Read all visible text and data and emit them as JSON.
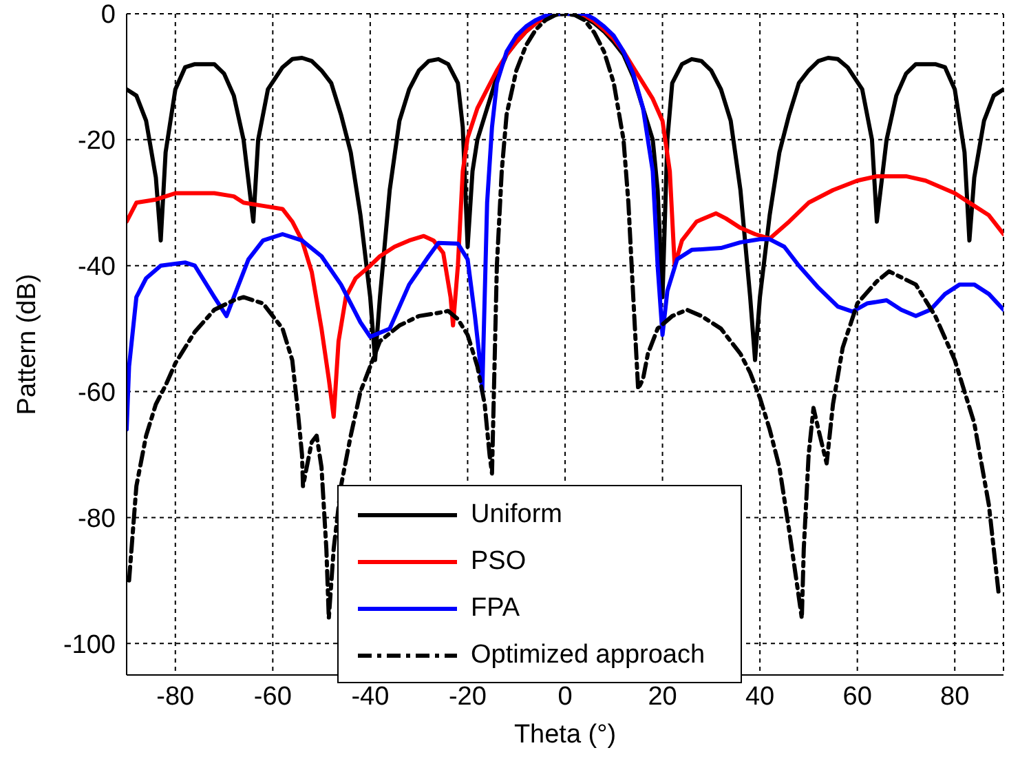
{
  "chart_data": {
    "type": "line",
    "xlabel": "Theta (°)",
    "ylabel": "Pattern (dB)",
    "xlim": [
      -90,
      90
    ],
    "xticks": [
      -80,
      -60,
      -40,
      -20,
      0,
      20,
      40,
      60,
      80
    ],
    "ylim": [
      -105,
      0
    ],
    "yticks": [
      -100,
      -80,
      -60,
      -40,
      -20,
      0
    ],
    "grid": true,
    "legend": "bottom",
    "marker": "none",
    "series": [
      {
        "name": "Uniform",
        "color": "#000000",
        "line_style": "solid",
        "x": [
          -90,
          -88,
          -86,
          -84,
          -83,
          -82,
          -80,
          -78,
          -76,
          -74,
          -72,
          -70,
          -68,
          -66,
          -64,
          -63,
          -61,
          -58,
          -56,
          -54,
          -52,
          -50,
          -48,
          -46,
          -44,
          -42,
          -40,
          -39,
          -38,
          -36,
          -34,
          -32,
          -30,
          -28,
          -26,
          -24,
          -22,
          -21,
          -20,
          -19,
          -18,
          -16,
          -14,
          -12,
          -10,
          -8,
          -6,
          -4,
          -2,
          0,
          2,
          4,
          6,
          8,
          10,
          12,
          14,
          16,
          18,
          19,
          20,
          21,
          22,
          24,
          26,
          28,
          30,
          32,
          34,
          36,
          38,
          39,
          40,
          42,
          44,
          46,
          48,
          50,
          52,
          54,
          56,
          58,
          61,
          63,
          64,
          66,
          68,
          70,
          72,
          74,
          76,
          78,
          80,
          82,
          83,
          84,
          86,
          88,
          90
        ],
        "values": [
          -12,
          -13,
          -17,
          -26,
          -36,
          -22,
          -12,
          -8.5,
          -8,
          -8,
          -8,
          -9.5,
          -13,
          -20,
          -33,
          -20,
          -12,
          -8.5,
          -7.2,
          -7,
          -7.5,
          -9,
          -11,
          -16,
          -22,
          -32,
          -45,
          -55,
          -45,
          -28,
          -17,
          -12,
          -9,
          -7.5,
          -7.2,
          -8,
          -11,
          -18,
          -37,
          -25,
          -20,
          -15,
          -10,
          -6.5,
          -4.5,
          -2.8,
          -1.5,
          -0.6,
          -0.1,
          0,
          -0.1,
          -0.6,
          -1.5,
          -2.8,
          -4.5,
          -6.5,
          -10,
          -15,
          -20,
          -28,
          -45,
          -20,
          -11,
          -8,
          -7.2,
          -7.5,
          -9,
          -12,
          -17,
          -28,
          -45,
          -55,
          -45,
          -32,
          -22,
          -16,
          -11,
          -9,
          -7.5,
          -7,
          -7.2,
          -8.5,
          -12,
          -20,
          -33,
          -20,
          -13,
          -9.5,
          -8,
          -8,
          -8,
          -8.5,
          -12,
          -22,
          -36,
          -26,
          -17,
          -13,
          -12
        ]
      },
      {
        "name": "PSO",
        "color": "#ff0000",
        "line_style": "solid",
        "x": [
          -90,
          -88,
          -84,
          -80,
          -76,
          -72,
          -68,
          -66,
          -62,
          -58,
          -56,
          -54,
          -52,
          -50,
          -48.5,
          -47.5,
          -46.5,
          -45,
          -43,
          -40,
          -38,
          -35,
          -32,
          -29,
          -27,
          -25,
          -23.5,
          -23,
          -22,
          -21,
          -20,
          -18,
          -16,
          -14,
          -12,
          -10,
          -8,
          -6,
          -4,
          -2,
          0,
          2,
          4,
          6,
          8,
          10,
          12,
          14,
          16,
          18,
          20,
          21.5,
          22.5,
          24,
          27,
          31,
          33,
          36,
          39,
          42,
          46,
          50,
          55,
          60,
          64,
          70,
          74,
          80,
          84,
          87,
          90
        ],
        "values": [
          -33,
          -30,
          -29.5,
          -28.5,
          -28.5,
          -28.5,
          -29,
          -30,
          -30.5,
          -31,
          -33,
          -36,
          -41,
          -50,
          -58,
          -64,
          -52,
          -45,
          -42,
          -40,
          -38.5,
          -37,
          -36,
          -35.3,
          -36,
          -38,
          -45,
          -49.5,
          -40,
          -25,
          -19.7,
          -15,
          -12,
          -9,
          -6.5,
          -4.5,
          -2.8,
          -1.5,
          -0.5,
          0,
          0,
          0,
          -0.3,
          -1.2,
          -2.5,
          -4,
          -6,
          -8.5,
          -11,
          -13.5,
          -17,
          -25,
          -40,
          -36,
          -33,
          -31.7,
          -32.5,
          -34,
          -35,
          -35.7,
          -33,
          -30,
          -28,
          -26.5,
          -25.8,
          -25.8,
          -26.5,
          -28.5,
          -30.5,
          -32,
          -35
        ]
      },
      {
        "name": "FPA",
        "color": "#0000ff",
        "line_style": "solid",
        "x": [
          -90,
          -89.5,
          -88,
          -86,
          -83,
          -78,
          -76,
          -72,
          -69.5,
          -68,
          -65,
          -62,
          -58,
          -54,
          -50,
          -46,
          -42,
          -40,
          -36,
          -32,
          -28,
          -26,
          -22,
          -20,
          -18.5,
          -17.5,
          -17,
          -16,
          -15,
          -14,
          -12,
          -10,
          -8,
          -6,
          -4,
          -2,
          0,
          2,
          4,
          6,
          8,
          10,
          12,
          14,
          16,
          18,
          19,
          20,
          21,
          23,
          26,
          32,
          36,
          40,
          42,
          45,
          48,
          52,
          56,
          59,
          62,
          66,
          69,
          72,
          75,
          78,
          81,
          84,
          87,
          90
        ],
        "values": [
          -66,
          -56,
          -45,
          -42,
          -40,
          -39.5,
          -40,
          -45,
          -48,
          -45,
          -39,
          -36,
          -35,
          -36,
          -38.5,
          -43,
          -49,
          -51.3,
          -50,
          -43,
          -38.5,
          -36.4,
          -36.5,
          -39,
          -48,
          -55,
          -60,
          -30,
          -18,
          -11,
          -6,
          -3.5,
          -2,
          -1,
          -0.3,
          0,
          0,
          0,
          0,
          -0.8,
          -2,
          -3.5,
          -6,
          -9.5,
          -15,
          -25,
          -40,
          -51,
          -44,
          -39,
          -37.5,
          -37.2,
          -36.3,
          -35.8,
          -35.8,
          -37,
          -40,
          -43.5,
          -46.5,
          -47.3,
          -46,
          -45.5,
          -47,
          -48,
          -47,
          -44.5,
          -43,
          -43,
          -44.5,
          -47
        ]
      },
      {
        "name": "Optimized approach",
        "color": "#000000",
        "line_style": "dashdot",
        "x": [
          -89.5,
          -88,
          -86,
          -84,
          -82,
          -80,
          -76,
          -72,
          -68,
          -66,
          -62,
          -58,
          -56,
          -55,
          -54,
          -53.8,
          -52,
          -51,
          -50,
          -49,
          -48.5,
          -47.5,
          -46,
          -44,
          -42,
          -40,
          -38,
          -34,
          -30,
          -26,
          -24,
          -22,
          -20,
          -18,
          -16.5,
          -15.5,
          -15,
          -14,
          -13,
          -12,
          -10,
          -8,
          -6,
          -4,
          -2,
          0,
          2,
          4,
          6,
          8,
          10,
          12,
          13,
          14,
          15,
          16,
          17,
          19,
          22,
          25,
          28,
          32,
          36,
          38,
          40,
          42,
          44,
          46,
          47.5,
          48.6,
          49,
          50,
          51,
          52,
          53.7,
          55,
          57,
          60,
          64,
          66.5,
          72,
          76,
          80,
          84,
          87,
          89
        ],
        "values": [
          -90,
          -75,
          -67,
          -62,
          -59,
          -55.5,
          -50.5,
          -47,
          -45.5,
          -45,
          -46,
          -50,
          -55,
          -62,
          -70,
          -75,
          -68,
          -67,
          -72,
          -85,
          -96,
          -85,
          -75,
          -67,
          -60,
          -56,
          -52,
          -49.5,
          -48,
          -47.5,
          -47.2,
          -48.5,
          -51,
          -56,
          -62,
          -70,
          -73,
          -40,
          -25,
          -16,
          -9,
          -5,
          -2.5,
          -1,
          -0.2,
          0,
          -0.2,
          -1,
          -3,
          -6,
          -11,
          -20,
          -30,
          -45,
          -59.6,
          -58,
          -54,
          -50,
          -48,
          -47,
          -48,
          -50,
          -54,
          -57,
          -61,
          -66,
          -72,
          -82,
          -90,
          -96,
          -85,
          -70,
          -62.6,
          -66,
          -71.4,
          -62,
          -53,
          -46,
          -42.5,
          -40.9,
          -43,
          -48,
          -55,
          -65,
          -78,
          -92
        ]
      }
    ]
  }
}
